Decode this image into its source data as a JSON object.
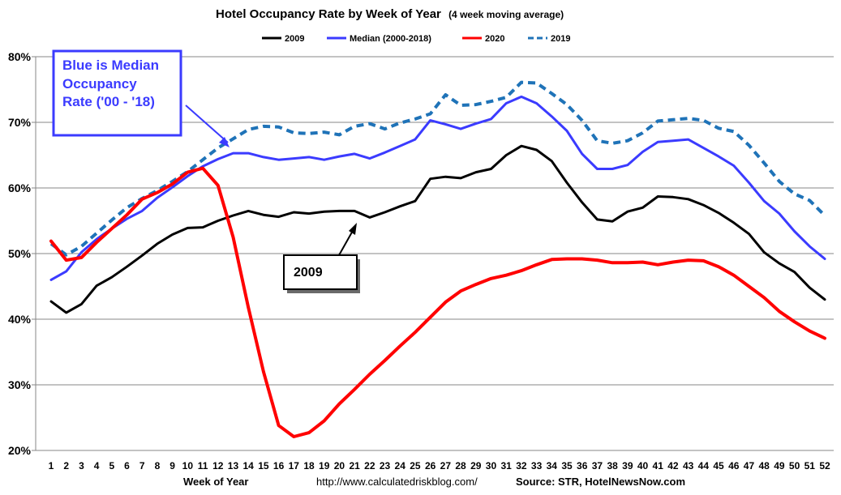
{
  "chart_data": {
    "type": "line",
    "title": "Hotel Occupancy Rate by  Week of Year",
    "subtitle": "(4 week moving average)",
    "xlabel": "Week of Year",
    "ylabel": "",
    "ylim": [
      20,
      80
    ],
    "yticks": [
      "20%",
      "30%",
      "40%",
      "50%",
      "60%",
      "70%",
      "80%"
    ],
    "x": [
      1,
      2,
      3,
      4,
      5,
      6,
      7,
      8,
      9,
      10,
      11,
      12,
      13,
      14,
      15,
      16,
      17,
      18,
      19,
      20,
      21,
      22,
      23,
      24,
      25,
      26,
      27,
      28,
      29,
      30,
      31,
      32,
      33,
      34,
      35,
      36,
      37,
      38,
      39,
      40,
      41,
      42,
      43,
      44,
      45,
      46,
      47,
      48,
      49,
      50,
      51,
      52
    ],
    "series": [
      {
        "name": "2009",
        "color": "#000000",
        "dash": "none",
        "width": 3,
        "values": [
          42.7,
          41.0,
          42.3,
          45.1,
          46.4,
          48.0,
          49.7,
          51.5,
          52.9,
          53.9,
          54.0,
          55.0,
          55.8,
          56.5,
          55.9,
          55.6,
          56.3,
          56.1,
          56.4,
          56.5,
          56.5,
          55.5,
          56.3,
          57.2,
          58.0,
          61.4,
          61.7,
          61.5,
          62.4,
          62.9,
          65.0,
          66.4,
          65.8,
          64.1,
          60.8,
          57.8,
          55.2,
          54.9,
          56.4,
          57.0,
          58.7,
          58.6,
          58.3,
          57.4,
          56.2,
          54.7,
          53.0,
          50.2,
          48.5,
          47.2,
          44.8,
          43.0
        ]
      },
      {
        "name": "Median (2000-2018)",
        "color": "#3b3bff",
        "dash": "none",
        "width": 3,
        "values": [
          46.0,
          47.3,
          50.2,
          52.2,
          53.8,
          55.3,
          56.5,
          58.5,
          60.1,
          61.8,
          63.3,
          64.4,
          65.3,
          65.3,
          64.7,
          64.3,
          64.5,
          64.7,
          64.3,
          64.8,
          65.2,
          64.5,
          65.4,
          66.4,
          67.4,
          70.3,
          69.7,
          69.0,
          69.8,
          70.5,
          72.9,
          73.9,
          72.9,
          70.9,
          68.7,
          65.2,
          62.9,
          62.9,
          63.5,
          65.5,
          67.0,
          67.2,
          67.4,
          66.1,
          64.8,
          63.4,
          60.8,
          58.0,
          56.1,
          53.4,
          51.1,
          49.2
        ]
      },
      {
        "name": "2020",
        "color": "#ff0000",
        "dash": "none",
        "width": 4,
        "values": [
          51.9,
          49.0,
          49.4,
          51.7,
          53.8,
          55.9,
          58.3,
          59.3,
          60.6,
          62.4,
          63.0,
          60.4,
          52.5,
          41.8,
          32.0,
          23.8,
          22.1,
          22.7,
          24.5,
          27.1,
          29.3,
          31.6,
          33.7,
          35.9,
          38.0,
          40.3,
          42.6,
          44.3,
          45.3,
          46.2,
          46.7,
          47.4,
          48.3,
          49.1,
          49.2,
          49.2,
          49.0,
          48.6,
          48.6,
          48.7,
          48.3,
          48.7,
          49.0,
          48.9,
          48.0,
          46.7,
          45.0,
          43.3,
          41.2,
          39.6,
          38.2,
          37.1
        ]
      },
      {
        "name": "2019",
        "color": "#1f73b8",
        "dash": "9 6",
        "width": 4,
        "values": [
          51.5,
          49.8,
          51.1,
          53.1,
          55.1,
          57.0,
          58.4,
          59.6,
          61.0,
          62.5,
          64.3,
          66.1,
          67.5,
          68.9,
          69.4,
          69.3,
          68.4,
          68.3,
          68.5,
          68.1,
          69.4,
          69.8,
          69.0,
          69.9,
          70.5,
          71.3,
          74.2,
          72.6,
          72.7,
          73.2,
          73.8,
          76.1,
          76.0,
          74.4,
          72.7,
          70.3,
          67.2,
          66.8,
          67.2,
          68.4,
          70.2,
          70.4,
          70.6,
          70.3,
          69.1,
          68.6,
          66.5,
          63.8,
          61.0,
          59.1,
          58.1,
          55.8
        ]
      }
    ],
    "legend_placement": "top-center",
    "grid": true
  },
  "annotations": {
    "blue_box": [
      "Blue is Median",
      "Occupancy",
      "Rate ('00 - '18)"
    ],
    "black_box": "2009"
  },
  "footer": {
    "xlabel": "Week of Year",
    "url": "http://www.calculatedriskblog.com/",
    "source": "Source: STR, HotelNewsNow.com"
  }
}
